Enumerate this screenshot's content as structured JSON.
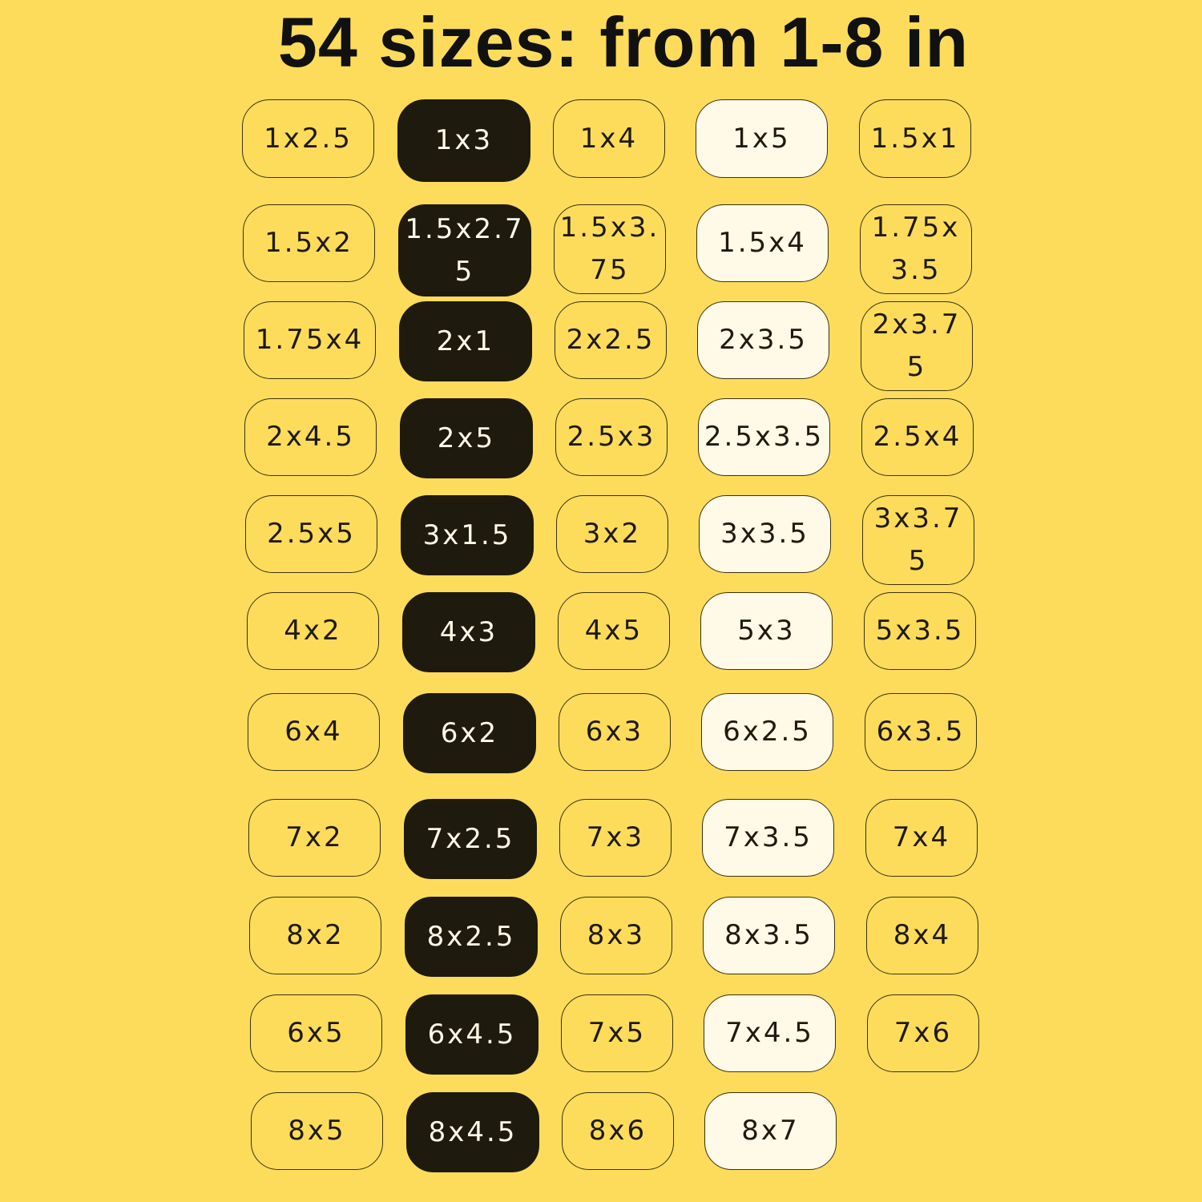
{
  "title": "54 sizes: from 1-8 in",
  "colors": {
    "background": "#fddc5c",
    "dark_chip": "#1f1a0e",
    "light_chip": "#fff9e8",
    "outline": "#3a3210"
  },
  "columns": [
    {
      "style": "outline",
      "sizes": [
        "1x2.5",
        "1.5x2",
        "1.75x4",
        "2x4.5",
        "2.5x5",
        "4x2",
        "6x4",
        "7x2",
        "8x2",
        "6x5",
        "8x5"
      ]
    },
    {
      "style": "dark",
      "sizes": [
        "1x3",
        "1.5x2.75",
        "2x1",
        "2x5",
        "3x1.5",
        "4x3",
        "6x2",
        "7x2.5",
        "8x2.5",
        "6x4.5",
        "8x4.5"
      ]
    },
    {
      "style": "outline",
      "sizes": [
        "1x4",
        "1.5x3.75",
        "2x2.5",
        "2.5x3",
        "3x2",
        "4x5",
        "6x3",
        "7x3",
        "8x3",
        "7x5",
        "8x6"
      ]
    },
    {
      "style": "light",
      "sizes": [
        "1x5",
        "1.5x4",
        "2x3.5",
        "2.5x3.5",
        "3x3.5",
        "5x3",
        "6x2.5",
        "7x3.5",
        "8x3.5",
        "7x4.5",
        "8x7"
      ]
    },
    {
      "style": "outline",
      "sizes": [
        "1.5x1",
        "1.75x3.5",
        "2x3.75",
        "2.5x4",
        "3x3.75",
        "5x3.5",
        "6x3.5",
        "7x4",
        "8x4",
        "7x6"
      ]
    }
  ]
}
